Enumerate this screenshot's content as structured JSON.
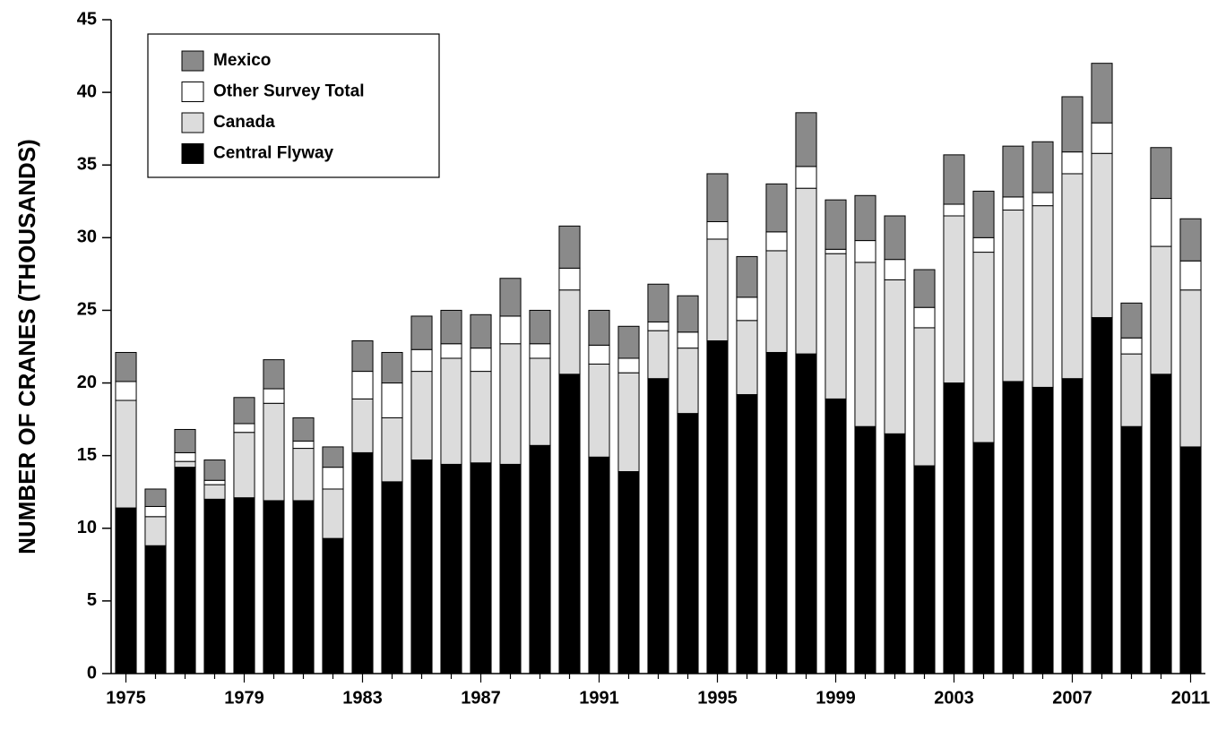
{
  "chart_data": {
    "type": "stacked_bar",
    "y_label": "NUMBER OF CRANES (THOUSANDS)",
    "categories": [
      "1975",
      null,
      null,
      null,
      "1979",
      null,
      null,
      null,
      "1983",
      null,
      null,
      null,
      "1987",
      null,
      null,
      null,
      "1991",
      null,
      null,
      null,
      "1995",
      null,
      null,
      null,
      "1999",
      null,
      null,
      null,
      "2003",
      null,
      null,
      null,
      "2007",
      null,
      null,
      null,
      "2011"
    ],
    "series": [
      {
        "name": "Central Flyway",
        "color": "#000000",
        "values": [
          11.4,
          8.8,
          14.2,
          12.0,
          12.1,
          11.9,
          11.9,
          9.3,
          15.2,
          13.2,
          14.7,
          14.4,
          14.5,
          14.4,
          15.7,
          20.6,
          14.9,
          13.9,
          20.3,
          17.9,
          22.9,
          19.2,
          22.1,
          22.0,
          18.9,
          17.0,
          16.5,
          14.3,
          20.0,
          15.9,
          20.1,
          19.7,
          20.3,
          24.5,
          17.0,
          20.6,
          15.6
        ]
      },
      {
        "name": "Canada",
        "color": "#dcdcdc",
        "values": [
          7.4,
          2.0,
          0.4,
          1.0,
          4.5,
          6.7,
          3.6,
          3.4,
          3.7,
          4.4,
          6.1,
          7.3,
          6.3,
          8.3,
          6.0,
          5.8,
          6.4,
          6.8,
          3.3,
          4.5,
          7.0,
          5.1,
          7.0,
          11.4,
          10.0,
          11.3,
          10.6,
          9.5,
          11.5,
          13.1,
          11.8,
          12.5,
          14.1,
          11.3,
          5.0,
          8.8,
          10.8
        ]
      },
      {
        "name": "Other Survey Total",
        "color": "#ffffff",
        "values": [
          1.3,
          0.7,
          0.6,
          0.3,
          0.6,
          1.0,
          0.5,
          1.5,
          1.9,
          2.4,
          1.5,
          1.0,
          1.6,
          1.9,
          1.0,
          1.5,
          1.3,
          1.0,
          0.6,
          1.1,
          1.2,
          1.6,
          1.3,
          1.5,
          0.3,
          1.5,
          1.4,
          1.4,
          0.8,
          1.0,
          0.9,
          0.9,
          1.5,
          2.1,
          1.1,
          3.3,
          2.0
        ]
      },
      {
        "name": "Mexico",
        "color": "#8a8a8a",
        "values": [
          2.0,
          1.2,
          1.6,
          1.4,
          1.8,
          2.0,
          1.6,
          1.4,
          2.1,
          2.1,
          2.3,
          2.3,
          2.3,
          2.6,
          2.3,
          2.9,
          2.4,
          2.2,
          2.6,
          2.5,
          3.3,
          2.8,
          3.3,
          3.7,
          3.4,
          3.1,
          3.0,
          2.6,
          3.4,
          3.2,
          3.5,
          3.5,
          3.8,
          4.1,
          2.4,
          3.5,
          2.9
        ]
      }
    ],
    "ylim": [
      0,
      45
    ],
    "yticks": [
      0,
      5,
      10,
      15,
      20,
      25,
      30,
      35,
      40,
      45
    ],
    "legend": "upper left"
  }
}
